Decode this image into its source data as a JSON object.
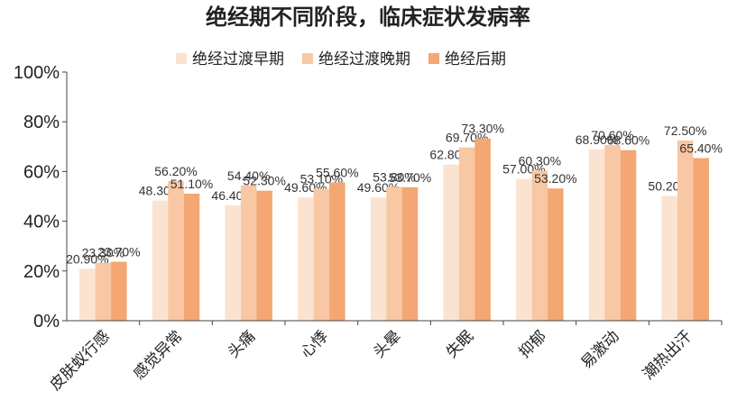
{
  "chart_data": {
    "type": "bar",
    "title": "绝经期不同阶段，临床症状发病率",
    "categories": [
      "皮肤蚁行感",
      "感觉异常",
      "头痛",
      "心悸",
      "头晕",
      "失眠",
      "抑郁",
      "易激动",
      "潮热出汗"
    ],
    "series": [
      {
        "name": "绝经过渡早期",
        "color": "#fbe3d1",
        "values": [
          20.9,
          48.3,
          46.4,
          49.6,
          49.6,
          62.8,
          57.0,
          68.9,
          50.2
        ],
        "labels": [
          "20.90%",
          "48.30%",
          "46.40%",
          "49.60%",
          "49.60%",
          "62.80%",
          "57.00%",
          "68.90%",
          "50.20%"
        ]
      },
      {
        "name": "绝经过渡晚期",
        "color": "#f8c7a3",
        "values": [
          23.3,
          56.2,
          54.4,
          53.1,
          53.8,
          69.7,
          60.3,
          70.6,
          72.5
        ],
        "labels": [
          "23.30%",
          "56.20%",
          "54.40%",
          "53.10%",
          "53.80%",
          "69.70%",
          "60.30%",
          "70.60%",
          "72.50%"
        ]
      },
      {
        "name": "绝经后期",
        "color": "#f4a673",
        "values": [
          23.7,
          51.1,
          52.3,
          55.6,
          53.7,
          73.3,
          53.2,
          68.6,
          65.4
        ],
        "labels": [
          "23.70%",
          "51.10%",
          "52.30%",
          "55.60%",
          "53.70%",
          "73.30%",
          "53.20%",
          "68.60%",
          "65.40%"
        ]
      }
    ],
    "ylim": [
      0,
      100
    ],
    "yticks": [
      "0%",
      "20%",
      "40%",
      "60%",
      "80%",
      "100%"
    ],
    "legend": "top",
    "grid": false
  }
}
